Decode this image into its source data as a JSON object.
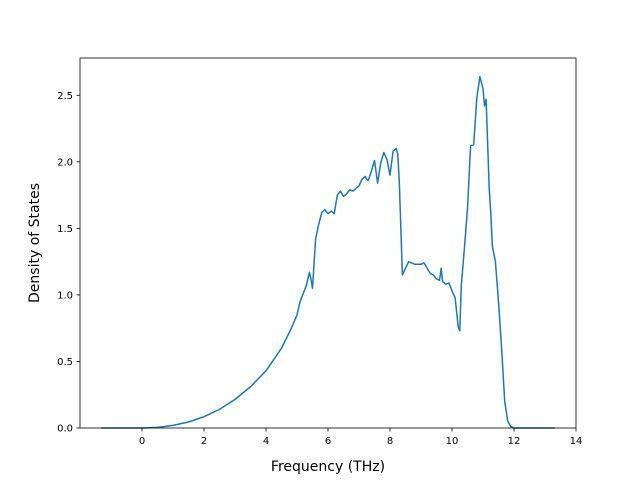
{
  "chart_data": {
    "type": "line",
    "title": "",
    "xlabel": "Frequency (THz)",
    "ylabel": "Density of States",
    "xlim": [
      -2.0,
      14.0
    ],
    "ylim": [
      0.0,
      2.78
    ],
    "xticks": [
      0,
      2,
      4,
      6,
      8,
      10,
      12,
      14
    ],
    "xtick_labels": [
      "0",
      "2",
      "4",
      "6",
      "8",
      "10",
      "12",
      "14"
    ],
    "yticks": [
      0.0,
      0.5,
      1.0,
      1.5,
      2.0,
      2.5
    ],
    "ytick_labels": [
      "0.0",
      "0.5",
      "1.0",
      "1.5",
      "2.0",
      "2.5"
    ],
    "grid": false,
    "legend": "none",
    "series": [
      {
        "color": "#1f77b4",
        "x": [
          -1.3,
          -0.5,
          0.0,
          0.5,
          1.0,
          1.5,
          2.0,
          2.5,
          3.0,
          3.5,
          4.0,
          4.5,
          4.8,
          5.0,
          5.1,
          5.2,
          5.3,
          5.4,
          5.45,
          5.5,
          5.6,
          5.7,
          5.8,
          5.9,
          6.0,
          6.1,
          6.2,
          6.3,
          6.4,
          6.5,
          6.6,
          6.7,
          6.8,
          6.9,
          7.0,
          7.1,
          7.2,
          7.25,
          7.3,
          7.4,
          7.5,
          7.6,
          7.7,
          7.8,
          7.9,
          8.0,
          8.1,
          8.2,
          8.25,
          8.3,
          8.4,
          8.5,
          8.6,
          8.8,
          9.0,
          9.1,
          9.2,
          9.3,
          9.4,
          9.5,
          9.6,
          9.65,
          9.7,
          9.8,
          9.9,
          10.0,
          10.1,
          10.2,
          10.25,
          10.3,
          10.4,
          10.5,
          10.6,
          10.7,
          10.8,
          10.9,
          11.0,
          11.05,
          11.1,
          11.2,
          11.25,
          11.3,
          11.4,
          11.5,
          11.6,
          11.7,
          11.8,
          11.9,
          12.0,
          12.05,
          12.1,
          12.2,
          12.5,
          13.0,
          13.3
        ],
        "y": [
          0.0,
          0.0,
          0.0,
          0.005,
          0.02,
          0.045,
          0.085,
          0.14,
          0.215,
          0.31,
          0.43,
          0.6,
          0.74,
          0.85,
          0.95,
          1.01,
          1.07,
          1.17,
          1.12,
          1.05,
          1.42,
          1.53,
          1.62,
          1.64,
          1.61,
          1.63,
          1.61,
          1.75,
          1.78,
          1.74,
          1.76,
          1.79,
          1.78,
          1.8,
          1.82,
          1.87,
          1.89,
          1.87,
          1.86,
          1.93,
          2.01,
          1.84,
          1.99,
          2.07,
          2.02,
          1.9,
          2.08,
          2.1,
          2.06,
          1.85,
          1.15,
          1.2,
          1.25,
          1.23,
          1.23,
          1.24,
          1.2,
          1.16,
          1.15,
          1.12,
          1.11,
          1.2,
          1.1,
          1.08,
          1.09,
          1.03,
          0.98,
          0.76,
          0.73,
          1.07,
          1.35,
          1.65,
          2.12,
          2.13,
          2.48,
          2.64,
          2.55,
          2.42,
          2.47,
          1.8,
          1.62,
          1.37,
          1.25,
          0.95,
          0.6,
          0.2,
          0.05,
          0.01,
          0.0,
          0.0,
          0.0,
          0.0,
          0.0,
          0.0,
          0.0
        ]
      }
    ]
  }
}
